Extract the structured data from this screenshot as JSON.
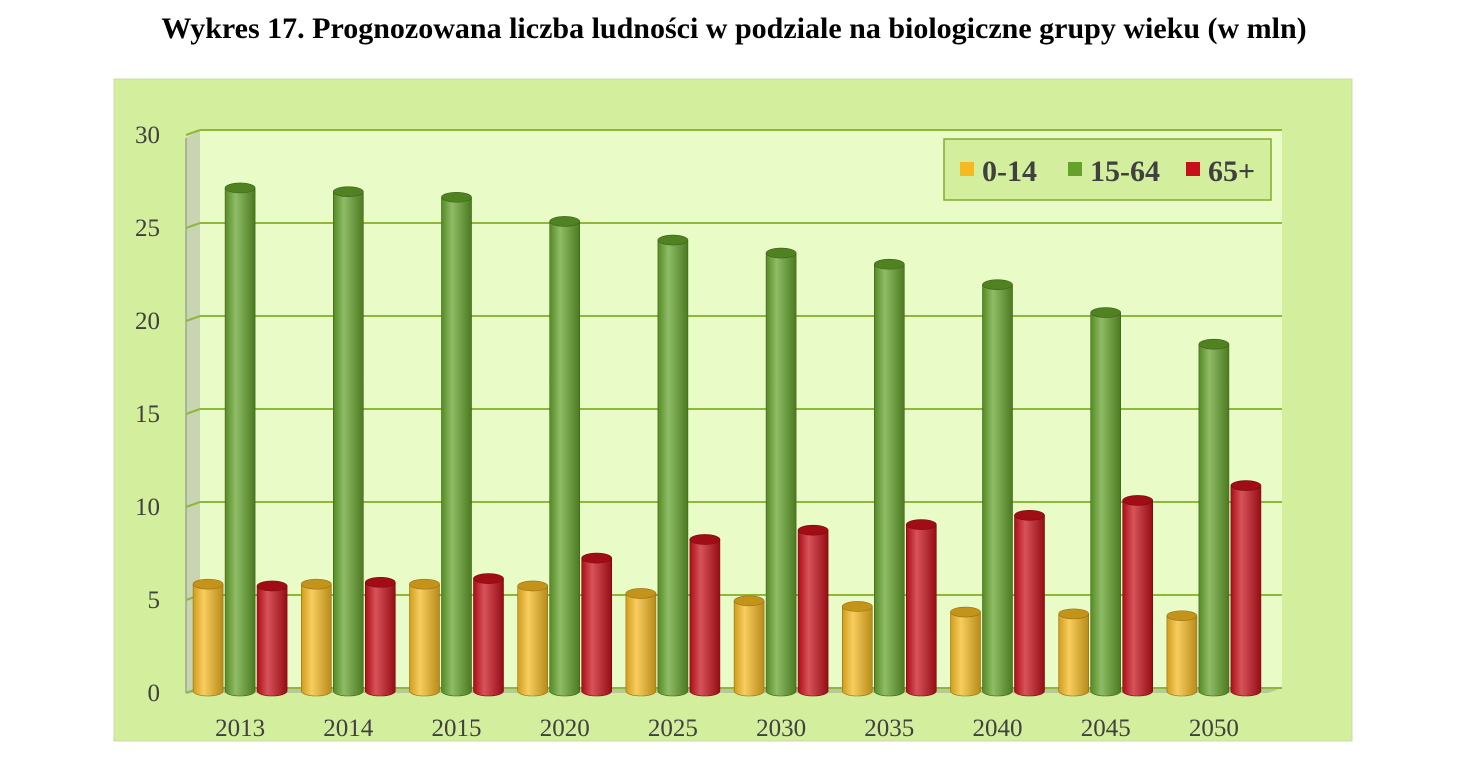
{
  "title": "Wykres 17. Prognozowana liczba ludności w podziale na biologiczne grupy wieku (w mln)",
  "colors": {
    "panel_bg": "#d3ee9d",
    "plot_bg": "#e9fbc6",
    "grid": "#8fb83a",
    "series_0_14": "#f5b921",
    "series_15_64": "#64a22a",
    "series_65": "#c8101a"
  },
  "chart_data": {
    "type": "bar",
    "title": "Wykres 17. Prognozowana liczba ludności w podziale na biologiczne grupy wieku (w mln)",
    "xlabel": "",
    "ylabel": "",
    "categories": [
      "2013",
      "2014",
      "2015",
      "2020",
      "2025",
      "2030",
      "2035",
      "2040",
      "2045",
      "2050"
    ],
    "series": [
      {
        "name": "0-14",
        "color": "#f5b921",
        "values": [
          5.8,
          5.8,
          5.8,
          5.7,
          5.3,
          4.9,
          4.6,
          4.3,
          4.2,
          4.1
        ]
      },
      {
        "name": "15-64",
        "color": "#64a22a",
        "values": [
          27.1,
          26.9,
          26.6,
          25.3,
          24.3,
          23.6,
          23.0,
          21.9,
          20.4,
          18.7
        ]
      },
      {
        "name": "65+",
        "color": "#c8101a",
        "values": [
          5.7,
          5.9,
          6.1,
          7.2,
          8.2,
          8.7,
          9.0,
          9.5,
          10.3,
          11.1
        ]
      }
    ],
    "ylim": [
      0,
      30
    ],
    "yticks": [
      "0",
      "5",
      "10",
      "15",
      "20",
      "25",
      "30"
    ],
    "grid": true,
    "legend_position": "top-right"
  }
}
